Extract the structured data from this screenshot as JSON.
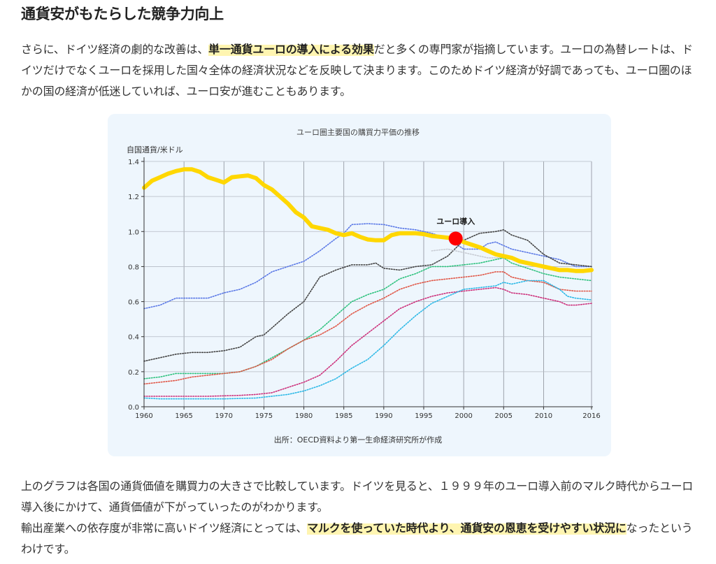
{
  "heading": "通貨安がもたらした競争力向上",
  "para1": {
    "t1": "さらに、ドイツ経済の劇的な改善は、",
    "hl": "単一通貨ユーロの導入による効果",
    "t2": "だと多くの専門家が指摘しています。ユーロの為替レートは、ドイツだけでなくユーロを採用した国々全体の経済状況などを反映して決まります。このためドイツ経済が好調であっても、ユーロ圏のほかの国の経済が低迷していれば、ユーロ安が進むこともあります。"
  },
  "para2": {
    "line1": "上のグラフは各国の通貨価値を購買力の大きさで比較しています。ドイツを見ると、１９９９年のユーロ導入前のマルク時代からユーロ導入後にかけて、通貨価値が下がっていったのがわかります。",
    "t1": "輸出産業への依存度が非常に高いドイツ経済にとっては、",
    "hl": "マルクを使っていた時代より、通貨安の恩恵を受けやすい状況に",
    "t2": "なったというわけです。"
  },
  "chart_data": {
    "type": "line",
    "title": "ユーロ圏主要国の購買力平価の推移",
    "ylabel": "自国通貨/米ドル",
    "xlabel": "",
    "source": "出所：OECD資料より第一生命経済研究所が作成",
    "xlim": [
      1960,
      2016
    ],
    "ylim": [
      0,
      1.4
    ],
    "x_ticks": [
      1960,
      1965,
      1970,
      1975,
      1980,
      1985,
      1990,
      1995,
      2000,
      2005,
      2010,
      2016
    ],
    "x_tick_labels": [
      "1960",
      "1965",
      "1970",
      "1975",
      "1980",
      "1985",
      "1990",
      "1995",
      "2000",
      "2005",
      "2010",
      "2016"
    ],
    "y_ticks": [
      0,
      0.2,
      0.4,
      0.6,
      0.8,
      1.0,
      1.2,
      1.4
    ],
    "y_tick_labels": [
      "0.0",
      "0.2",
      "0.4",
      "0.6",
      "0.8",
      "1.0",
      "1.2",
      "1.4"
    ],
    "grid": true,
    "annotation": {
      "label": "ユーロ導入",
      "x": 1999,
      "y": 0.96,
      "color": "#ff0000"
    },
    "series": [
      {
        "name": "Germany",
        "color": "#ffd700",
        "style": "thick",
        "points": [
          [
            1960,
            1.25
          ],
          [
            1961,
            1.29
          ],
          [
            1962,
            1.31
          ],
          [
            1963,
            1.33
          ],
          [
            1964,
            1.345
          ],
          [
            1965,
            1.355
          ],
          [
            1966,
            1.355
          ],
          [
            1967,
            1.34
          ],
          [
            1968,
            1.31
          ],
          [
            1969,
            1.295
          ],
          [
            1970,
            1.28
          ],
          [
            1971,
            1.31
          ],
          [
            1972,
            1.315
          ],
          [
            1973,
            1.32
          ],
          [
            1974,
            1.305
          ],
          [
            1975,
            1.265
          ],
          [
            1976,
            1.24
          ],
          [
            1977,
            1.2
          ],
          [
            1978,
            1.16
          ],
          [
            1979,
            1.11
          ],
          [
            1980,
            1.08
          ],
          [
            1981,
            1.03
          ],
          [
            1982,
            1.02
          ],
          [
            1983,
            1.01
          ],
          [
            1984,
            0.99
          ],
          [
            1985,
            0.98
          ],
          [
            1986,
            0.99
          ],
          [
            1987,
            0.97
          ],
          [
            1988,
            0.955
          ],
          [
            1989,
            0.95
          ],
          [
            1990,
            0.95
          ],
          [
            1991,
            0.98
          ],
          [
            1992,
            0.99
          ],
          [
            1993,
            0.99
          ],
          [
            1994,
            0.99
          ],
          [
            1995,
            0.985
          ],
          [
            1996,
            0.975
          ],
          [
            1997,
            0.97
          ],
          [
            1998,
            0.965
          ],
          [
            1999,
            0.96
          ],
          [
            2000,
            0.94
          ],
          [
            2001,
            0.925
          ],
          [
            2002,
            0.91
          ],
          [
            2003,
            0.89
          ],
          [
            2004,
            0.87
          ],
          [
            2005,
            0.86
          ],
          [
            2006,
            0.85
          ],
          [
            2007,
            0.83
          ],
          [
            2008,
            0.82
          ],
          [
            2009,
            0.81
          ],
          [
            2010,
            0.8
          ],
          [
            2011,
            0.79
          ],
          [
            2012,
            0.78
          ],
          [
            2013,
            0.78
          ],
          [
            2014,
            0.775
          ],
          [
            2015,
            0.775
          ],
          [
            2016,
            0.78
          ]
        ]
      },
      {
        "name": "blue",
        "color": "#5a78e6",
        "style": "dotted",
        "points": [
          [
            1960,
            0.56
          ],
          [
            1962,
            0.58
          ],
          [
            1964,
            0.62
          ],
          [
            1966,
            0.62
          ],
          [
            1968,
            0.62
          ],
          [
            1970,
            0.65
          ],
          [
            1972,
            0.67
          ],
          [
            1974,
            0.71
          ],
          [
            1976,
            0.77
          ],
          [
            1978,
            0.8
          ],
          [
            1980,
            0.83
          ],
          [
            1982,
            0.89
          ],
          [
            1984,
            0.96
          ],
          [
            1985,
            0.99
          ],
          [
            1986,
            1.04
          ],
          [
            1988,
            1.045
          ],
          [
            1990,
            1.04
          ],
          [
            1992,
            1.02
          ],
          [
            1994,
            1.01
          ],
          [
            1996,
            0.99
          ],
          [
            1998,
            0.96
          ],
          [
            2000,
            0.9
          ],
          [
            2002,
            0.9
          ],
          [
            2003,
            0.93
          ],
          [
            2004,
            0.94
          ],
          [
            2006,
            0.9
          ],
          [
            2008,
            0.88
          ],
          [
            2010,
            0.86
          ],
          [
            2012,
            0.84
          ],
          [
            2014,
            0.8
          ],
          [
            2016,
            0.8
          ]
        ]
      },
      {
        "name": "black",
        "color": "#444444",
        "style": "dotted",
        "points": [
          [
            1960,
            0.26
          ],
          [
            1962,
            0.28
          ],
          [
            1964,
            0.3
          ],
          [
            1966,
            0.31
          ],
          [
            1968,
            0.31
          ],
          [
            1970,
            0.32
          ],
          [
            1972,
            0.34
          ],
          [
            1974,
            0.4
          ],
          [
            1975,
            0.41
          ],
          [
            1976,
            0.45
          ],
          [
            1978,
            0.53
          ],
          [
            1980,
            0.6
          ],
          [
            1982,
            0.74
          ],
          [
            1984,
            0.78
          ],
          [
            1986,
            0.81
          ],
          [
            1988,
            0.81
          ],
          [
            1989,
            0.82
          ],
          [
            1990,
            0.79
          ],
          [
            1992,
            0.78
          ],
          [
            1994,
            0.8
          ],
          [
            1996,
            0.81
          ],
          [
            1998,
            0.86
          ],
          [
            2000,
            0.95
          ],
          [
            2002,
            0.99
          ],
          [
            2004,
            1.0
          ],
          [
            2005,
            1.01
          ],
          [
            2006,
            0.98
          ],
          [
            2008,
            0.95
          ],
          [
            2010,
            0.87
          ],
          [
            2012,
            0.82
          ],
          [
            2014,
            0.81
          ],
          [
            2016,
            0.8
          ]
        ]
      },
      {
        "name": "lightgray",
        "color": "#c8ccd4",
        "style": "dotted",
        "points": [
          [
            1996,
            0.89
          ],
          [
            1998,
            0.9
          ],
          [
            2000,
            0.88
          ],
          [
            2003,
            0.85
          ],
          [
            2005,
            0.85
          ]
        ]
      },
      {
        "name": "green",
        "color": "#2ec27e",
        "style": "dotted",
        "points": [
          [
            1960,
            0.16
          ],
          [
            1962,
            0.17
          ],
          [
            1964,
            0.19
          ],
          [
            1966,
            0.19
          ],
          [
            1968,
            0.19
          ],
          [
            1970,
            0.19
          ],
          [
            1972,
            0.2
          ],
          [
            1974,
            0.23
          ],
          [
            1976,
            0.28
          ],
          [
            1978,
            0.33
          ],
          [
            1980,
            0.38
          ],
          [
            1982,
            0.44
          ],
          [
            1984,
            0.52
          ],
          [
            1986,
            0.6
          ],
          [
            1988,
            0.64
          ],
          [
            1990,
            0.67
          ],
          [
            1992,
            0.73
          ],
          [
            1994,
            0.76
          ],
          [
            1996,
            0.8
          ],
          [
            1998,
            0.8
          ],
          [
            2000,
            0.81
          ],
          [
            2002,
            0.82
          ],
          [
            2004,
            0.84
          ],
          [
            2005,
            0.85
          ],
          [
            2006,
            0.82
          ],
          [
            2008,
            0.79
          ],
          [
            2010,
            0.76
          ],
          [
            2012,
            0.74
          ],
          [
            2014,
            0.73
          ],
          [
            2016,
            0.72
          ]
        ]
      },
      {
        "name": "red",
        "color": "#e05545",
        "style": "dotted",
        "points": [
          [
            1960,
            0.13
          ],
          [
            1962,
            0.14
          ],
          [
            1964,
            0.15
          ],
          [
            1966,
            0.17
          ],
          [
            1968,
            0.18
          ],
          [
            1970,
            0.19
          ],
          [
            1972,
            0.2
          ],
          [
            1974,
            0.23
          ],
          [
            1976,
            0.27
          ],
          [
            1978,
            0.33
          ],
          [
            1980,
            0.38
          ],
          [
            1982,
            0.41
          ],
          [
            1984,
            0.46
          ],
          [
            1986,
            0.53
          ],
          [
            1988,
            0.58
          ],
          [
            1990,
            0.62
          ],
          [
            1992,
            0.67
          ],
          [
            1994,
            0.7
          ],
          [
            1996,
            0.72
          ],
          [
            1998,
            0.73
          ],
          [
            2000,
            0.74
          ],
          [
            2002,
            0.75
          ],
          [
            2004,
            0.77
          ],
          [
            2005,
            0.77
          ],
          [
            2006,
            0.74
          ],
          [
            2008,
            0.72
          ],
          [
            2010,
            0.71
          ],
          [
            2012,
            0.67
          ],
          [
            2014,
            0.66
          ],
          [
            2016,
            0.66
          ]
        ]
      },
      {
        "name": "magenta",
        "color": "#cc2f7a",
        "style": "dotted",
        "points": [
          [
            1960,
            0.06
          ],
          [
            1964,
            0.06
          ],
          [
            1968,
            0.06
          ],
          [
            1972,
            0.065
          ],
          [
            1974,
            0.07
          ],
          [
            1976,
            0.08
          ],
          [
            1978,
            0.11
          ],
          [
            1980,
            0.14
          ],
          [
            1982,
            0.18
          ],
          [
            1984,
            0.26
          ],
          [
            1986,
            0.35
          ],
          [
            1988,
            0.42
          ],
          [
            1990,
            0.49
          ],
          [
            1992,
            0.56
          ],
          [
            1994,
            0.6
          ],
          [
            1996,
            0.63
          ],
          [
            1998,
            0.65
          ],
          [
            2000,
            0.66
          ],
          [
            2002,
            0.67
          ],
          [
            2004,
            0.68
          ],
          [
            2005,
            0.67
          ],
          [
            2006,
            0.65
          ],
          [
            2008,
            0.64
          ],
          [
            2010,
            0.62
          ],
          [
            2012,
            0.6
          ],
          [
            2013,
            0.58
          ],
          [
            2014,
            0.58
          ],
          [
            2016,
            0.59
          ]
        ]
      },
      {
        "name": "cyan",
        "color": "#2ab8e6",
        "style": "dotted",
        "points": [
          [
            1960,
            0.05
          ],
          [
            1962,
            0.045
          ],
          [
            1966,
            0.045
          ],
          [
            1970,
            0.045
          ],
          [
            1974,
            0.05
          ],
          [
            1978,
            0.07
          ],
          [
            1980,
            0.09
          ],
          [
            1982,
            0.12
          ],
          [
            1984,
            0.16
          ],
          [
            1986,
            0.22
          ],
          [
            1988,
            0.27
          ],
          [
            1990,
            0.35
          ],
          [
            1992,
            0.44
          ],
          [
            1994,
            0.52
          ],
          [
            1996,
            0.59
          ],
          [
            1998,
            0.63
          ],
          [
            2000,
            0.67
          ],
          [
            2002,
            0.68
          ],
          [
            2004,
            0.69
          ],
          [
            2005,
            0.71
          ],
          [
            2006,
            0.7
          ],
          [
            2008,
            0.72
          ],
          [
            2010,
            0.72
          ],
          [
            2012,
            0.67
          ],
          [
            2013,
            0.63
          ],
          [
            2014,
            0.62
          ],
          [
            2016,
            0.61
          ]
        ]
      }
    ]
  }
}
